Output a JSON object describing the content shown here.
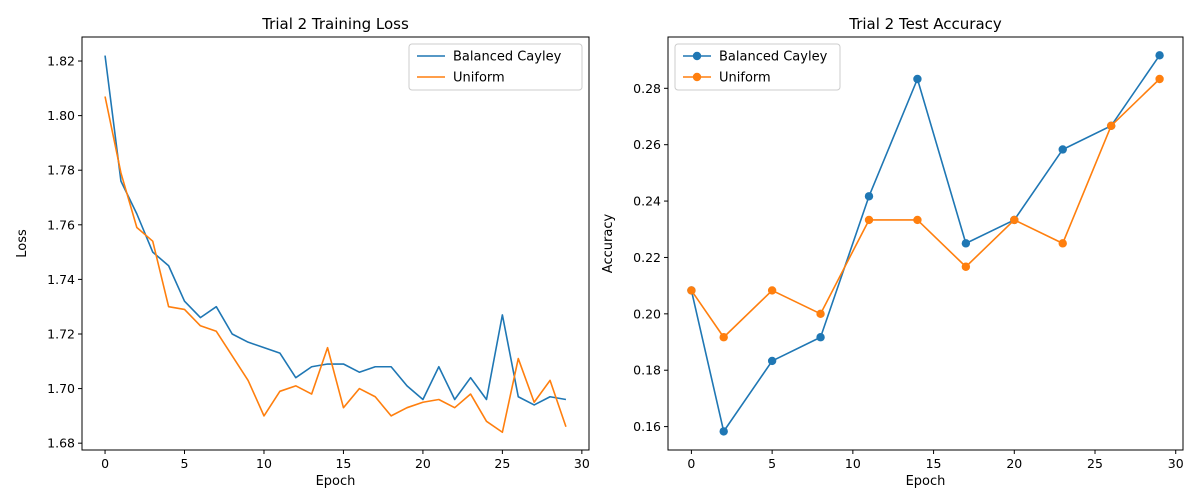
{
  "chart_data": [
    {
      "type": "line",
      "title": "Trial 2 Training Loss",
      "xlabel": "Epoch",
      "ylabel": "Loss",
      "xlim": [
        -1.45,
        30.45
      ],
      "ylim": [
        1.6775,
        1.8288
      ],
      "xticks": [
        0,
        5,
        10,
        15,
        20,
        25,
        30
      ],
      "yticks": [
        1.68,
        1.7,
        1.72,
        1.74,
        1.76,
        1.78,
        1.8,
        1.82
      ],
      "ytick_labels": [
        "1.68",
        "1.70",
        "1.72",
        "1.74",
        "1.76",
        "1.78",
        "1.80",
        "1.82"
      ],
      "grid": false,
      "legend": "top-right",
      "markers": false,
      "x": [
        0,
        1,
        2,
        3,
        4,
        5,
        6,
        7,
        8,
        9,
        10,
        11,
        12,
        13,
        14,
        15,
        16,
        17,
        18,
        19,
        20,
        21,
        22,
        23,
        24,
        25,
        26,
        27,
        28,
        29
      ],
      "series": [
        {
          "name": "Balanced Cayley",
          "color": "#1f77b4",
          "values": [
            1.822,
            1.776,
            1.764,
            1.75,
            1.745,
            1.732,
            1.726,
            1.73,
            1.72,
            1.717,
            1.715,
            1.713,
            1.704,
            1.708,
            1.709,
            1.709,
            1.706,
            1.708,
            1.708,
            1.701,
            1.696,
            1.708,
            1.696,
            1.704,
            1.696,
            1.727,
            1.697,
            1.694,
            1.697,
            1.696
          ]
        },
        {
          "name": "Uniform",
          "color": "#ff7f0e",
          "values": [
            1.807,
            1.779,
            1.759,
            1.754,
            1.73,
            1.729,
            1.723,
            1.721,
            1.712,
            1.703,
            1.69,
            1.699,
            1.701,
            1.698,
            1.715,
            1.693,
            1.7,
            1.697,
            1.69,
            1.693,
            1.695,
            1.696,
            1.693,
            1.698,
            1.688,
            1.684,
            1.711,
            1.695,
            1.703,
            1.686
          ]
        }
      ]
    },
    {
      "type": "line",
      "title": "Trial 2 Test Accuracy",
      "xlabel": "Epoch",
      "ylabel": "Accuracy",
      "xlim": [
        -1.45,
        30.45
      ],
      "ylim": [
        0.1517,
        0.2982
      ],
      "xticks": [
        0,
        5,
        10,
        15,
        20,
        25,
        30
      ],
      "yticks": [
        0.16,
        0.18,
        0.2,
        0.22,
        0.24,
        0.26,
        0.28
      ],
      "ytick_labels": [
        "0.16",
        "0.18",
        "0.20",
        "0.22",
        "0.24",
        "0.26",
        "0.28"
      ],
      "grid": false,
      "legend": "top-left",
      "markers": true,
      "x": [
        0,
        2,
        5,
        8,
        11,
        14,
        17,
        20,
        23,
        26,
        29
      ],
      "series": [
        {
          "name": "Balanced Cayley",
          "color": "#1f77b4",
          "values": [
            0.2083,
            0.1583,
            0.1833,
            0.1917,
            0.2417,
            0.2833,
            0.225,
            0.2333,
            0.2583,
            0.2667,
            0.2917
          ]
        },
        {
          "name": "Uniform",
          "color": "#ff7f0e",
          "values": [
            0.2083,
            0.1917,
            0.2083,
            0.2,
            0.2333,
            0.2333,
            0.2167,
            0.2333,
            0.225,
            0.2667,
            0.2833
          ]
        }
      ]
    }
  ]
}
